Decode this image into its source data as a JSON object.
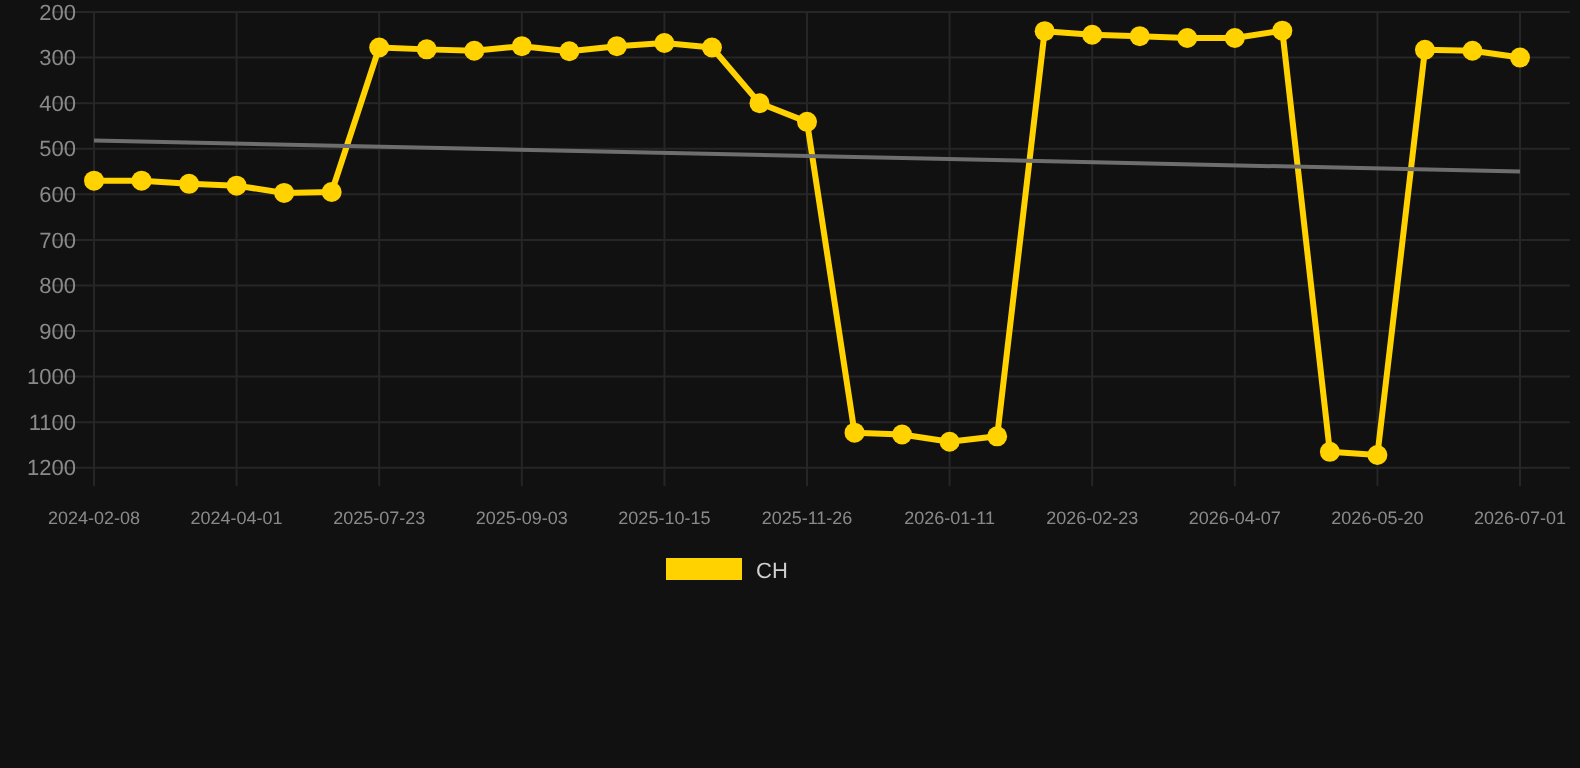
{
  "chart_data": {
    "type": "line",
    "categories": [
      "2024-02-08",
      null,
      null,
      "2024-04-01",
      null,
      null,
      "2025-07-23",
      null,
      null,
      "2025-09-03",
      null,
      null,
      "2025-10-15",
      null,
      null,
      "2025-11-26",
      null,
      null,
      "2026-01-11",
      null,
      null,
      "2026-02-23",
      null,
      null,
      "2026-04-07",
      null,
      null,
      "2026-05-20",
      null,
      null,
      "2026-07-01"
    ],
    "series": [
      {
        "name": "CH",
        "color": "#ffd200",
        "marker": "circle",
        "values": [
          570,
          570,
          577,
          581,
          597,
          595,
          278,
          282,
          285,
          275,
          286,
          275,
          268,
          278,
          400,
          441,
          1123,
          1127,
          1143,
          1131,
          242,
          250,
          253,
          257,
          257,
          241,
          1165,
          1172,
          283,
          285,
          300
        ]
      },
      {
        "color": "#6e6e6e",
        "marker": "none",
        "values": [
          482,
          null,
          null,
          null,
          null,
          null,
          null,
          null,
          null,
          null,
          null,
          null,
          null,
          null,
          null,
          null,
          null,
          null,
          null,
          null,
          null,
          null,
          null,
          null,
          null,
          null,
          null,
          null,
          null,
          null,
          550
        ]
      }
    ],
    "ylim": [
      1240,
      200
    ],
    "yticks": [
      200,
      300,
      400,
      500,
      600,
      700,
      800,
      900,
      1000,
      1100,
      1200
    ],
    "grid": true,
    "legend": "bottom"
  }
}
